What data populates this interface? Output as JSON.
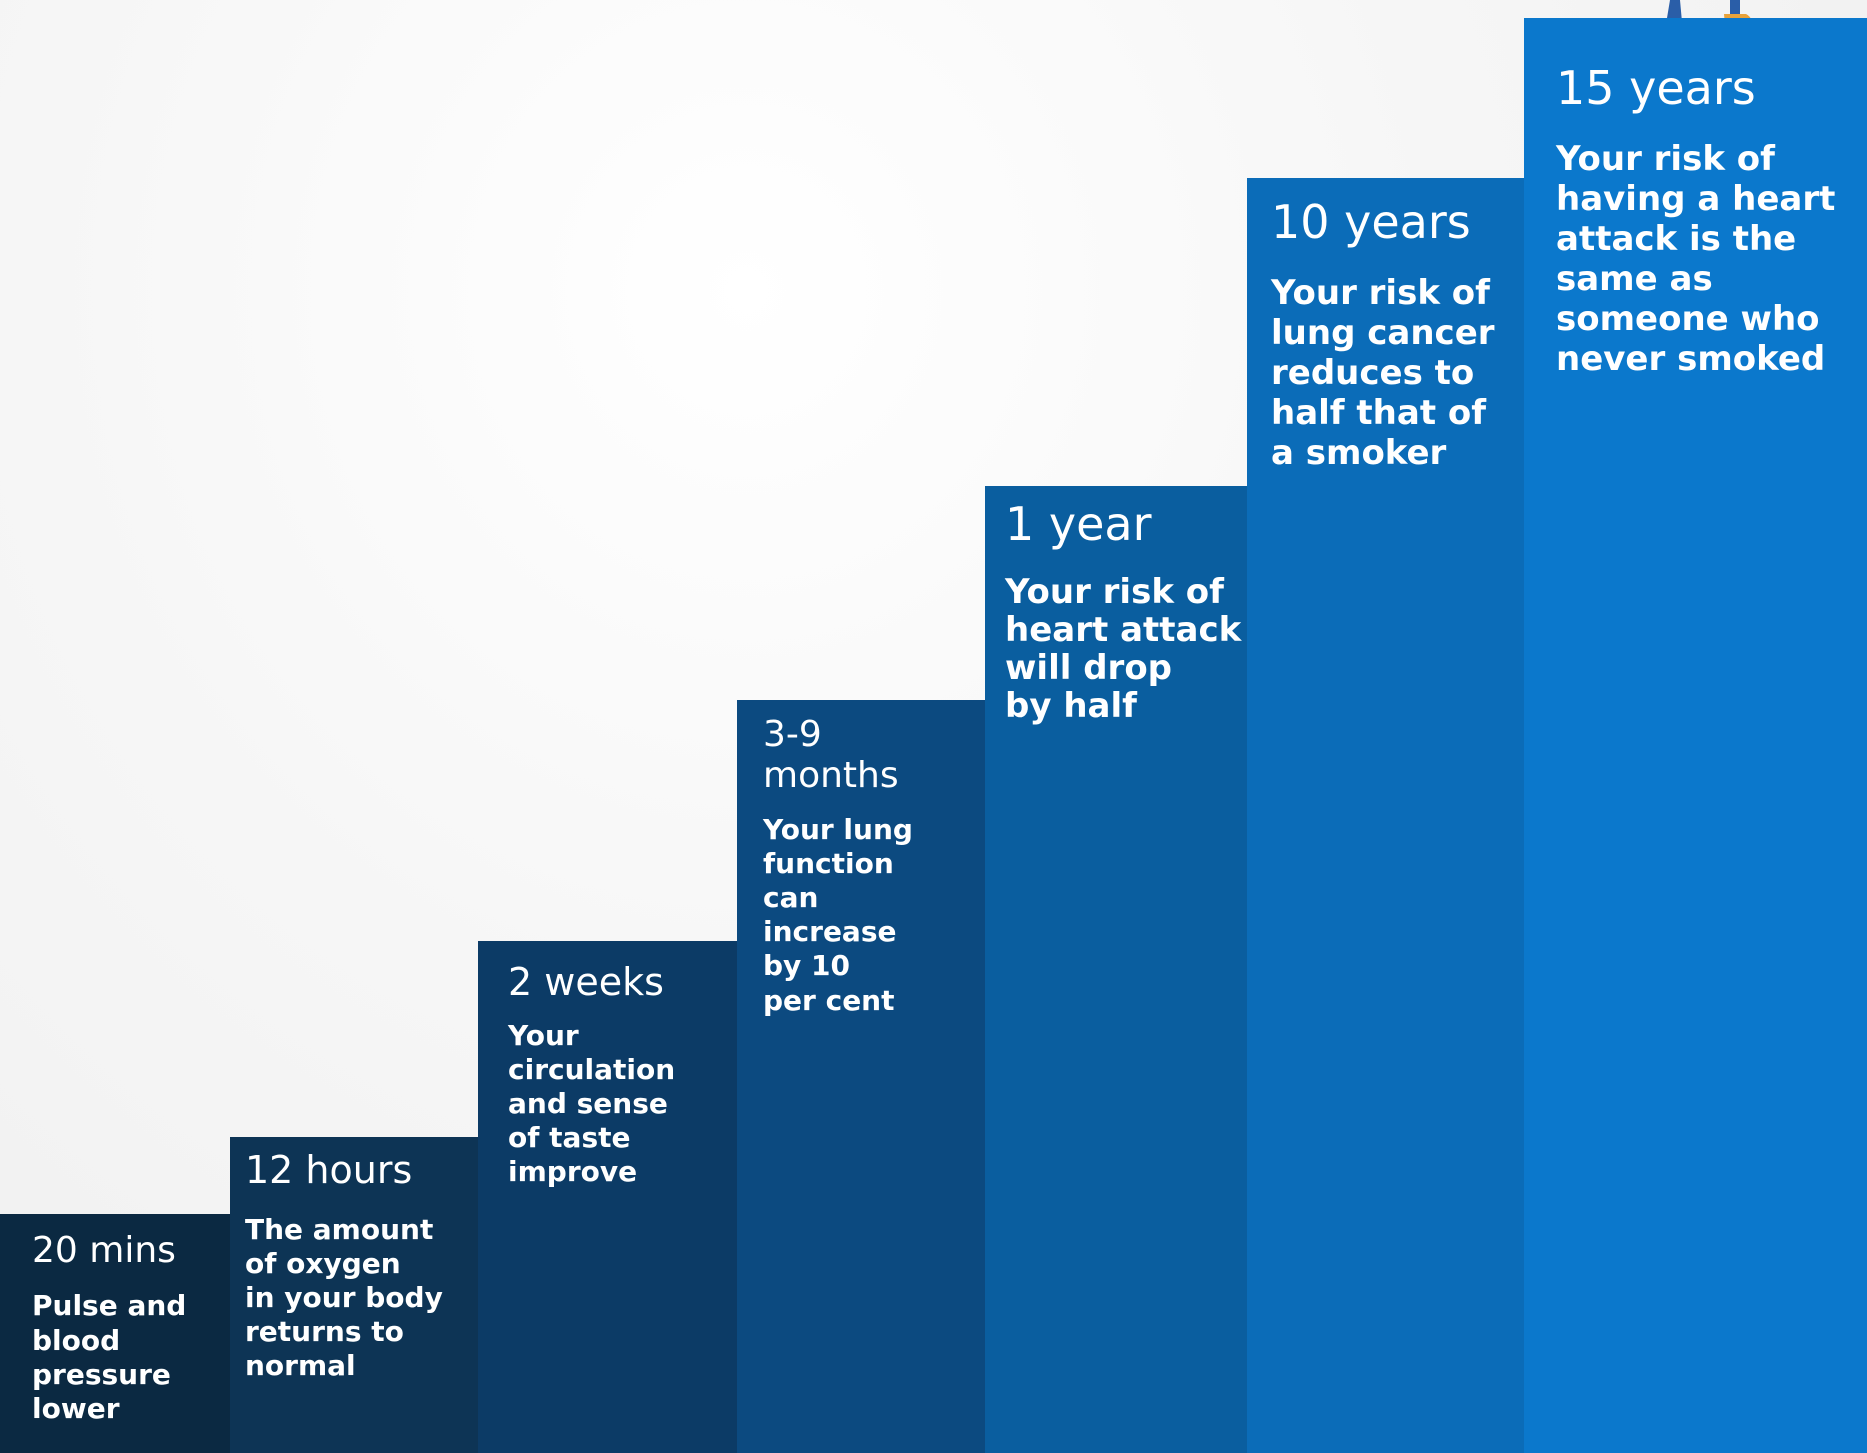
{
  "steps": [
    {
      "period": "20 mins",
      "description": "Pulse and\nblood\npressure\nlower",
      "color": "#0b2942"
    },
    {
      "period": "12 hours",
      "description": "The amount\nof oxygen\nin your body\nreturns to\nnormal",
      "color": "#0d3455"
    },
    {
      "period": "2 weeks",
      "description": "Your\ncirculation\nand sense\nof taste\nimprove",
      "color": "#0c3b66"
    },
    {
      "period": "3-9\nmonths",
      "description": "Your lung\nfunction\ncan\nincrease\nby 10\nper cent",
      "color": "#0c4a80"
    },
    {
      "period": "1 year",
      "description": "Your risk of\nheart attack\nwill drop\nby half",
      "color": "#0a5e9f"
    },
    {
      "period": "10 years",
      "description": "Your risk of\nlung cancer\nreduces to\nhalf that of\na smoker",
      "color": "#0b6cb8"
    },
    {
      "period": "15 years",
      "description": "Your risk of\nhaving a heart\nattack is the\nsame as\nsomeone who\nnever smoked",
      "color": "#0b78cc"
    }
  ],
  "colors": {
    "title": "#1f6fc4",
    "shoe": "#e8a23a"
  },
  "icons": {
    "climber": "person-feet-with-sneakers-icon"
  }
}
